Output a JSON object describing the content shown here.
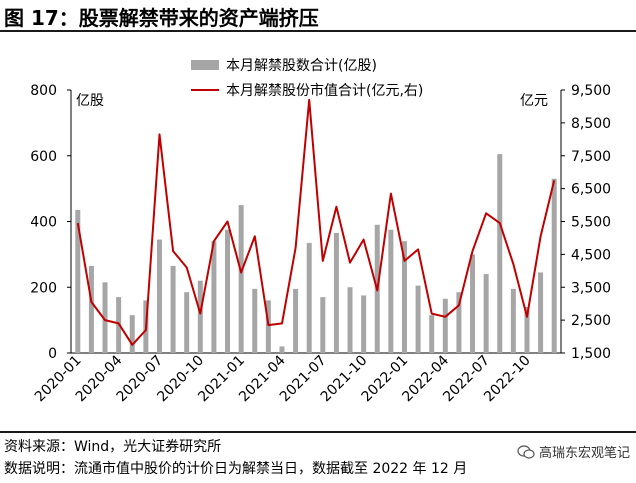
{
  "header": {
    "title": "图 17：股票解禁带来的资产端挤压"
  },
  "footer": {
    "source": "资料来源：Wind，光大证券研究所",
    "note": "数据说明：流通市值中股价的计价日为解禁当日，数据截至 2022 年 12 月",
    "brand": "高瑞东宏观笔记"
  },
  "chart_data": {
    "type": "bar",
    "left_axis_label": "亿股",
    "right_axis_label": "亿元",
    "x_tick_labels": [
      "2020-01",
      "2020-04",
      "2020-07",
      "2020-10",
      "2021-01",
      "2021-04",
      "2021-07",
      "2021-10",
      "2022-01",
      "2022-04",
      "2022-07",
      "2022-10"
    ],
    "y_left_ticks": [
      0,
      200,
      400,
      600,
      800
    ],
    "y_right_ticks": [
      "1,500",
      "2,500",
      "3,500",
      "4,500",
      "5,500",
      "6,500",
      "7,500",
      "8,500",
      "9,500"
    ],
    "ylim_left": [
      0,
      800
    ],
    "ylim_right": [
      1500,
      9500
    ],
    "legend_position": "top-center",
    "grid": false,
    "categories": [
      "2020-01",
      "2020-02",
      "2020-03",
      "2020-04",
      "2020-05",
      "2020-06",
      "2020-07",
      "2020-08",
      "2020-09",
      "2020-10",
      "2020-11",
      "2020-12",
      "2021-01",
      "2021-02",
      "2021-03",
      "2021-04",
      "2021-05",
      "2021-06",
      "2021-07",
      "2021-08",
      "2021-09",
      "2021-10",
      "2021-11",
      "2021-12",
      "2022-01",
      "2022-02",
      "2022-03",
      "2022-04",
      "2022-05",
      "2022-06",
      "2022-07",
      "2022-08",
      "2022-09",
      "2022-10",
      "2022-11",
      "2022-12"
    ],
    "series": [
      {
        "name": "本月解禁股数合计(亿股)",
        "kind": "bar",
        "axis": "left",
        "color": "#a6a6a6",
        "values": [
          435,
          265,
          215,
          170,
          115,
          160,
          345,
          265,
          185,
          220,
          340,
          375,
          450,
          195,
          160,
          20,
          195,
          335,
          170,
          365,
          200,
          175,
          390,
          375,
          340,
          205,
          115,
          165,
          185,
          300,
          240,
          605,
          195,
          140,
          245,
          530
        ]
      },
      {
        "name": "本月解禁股份市值合计(亿元,右)",
        "kind": "line",
        "axis": "right",
        "color": "#c00000",
        "values": [
          5450,
          3050,
          2500,
          2400,
          1750,
          2200,
          8150,
          4600,
          4100,
          2700,
          4900,
          5500,
          3950,
          5050,
          2350,
          2400,
          4700,
          9200,
          4300,
          5950,
          4250,
          4950,
          3400,
          6350,
          4300,
          4650,
          2700,
          2600,
          2950,
          4600,
          5750,
          5450,
          4200,
          2600,
          5050,
          6750
        ]
      }
    ]
  }
}
